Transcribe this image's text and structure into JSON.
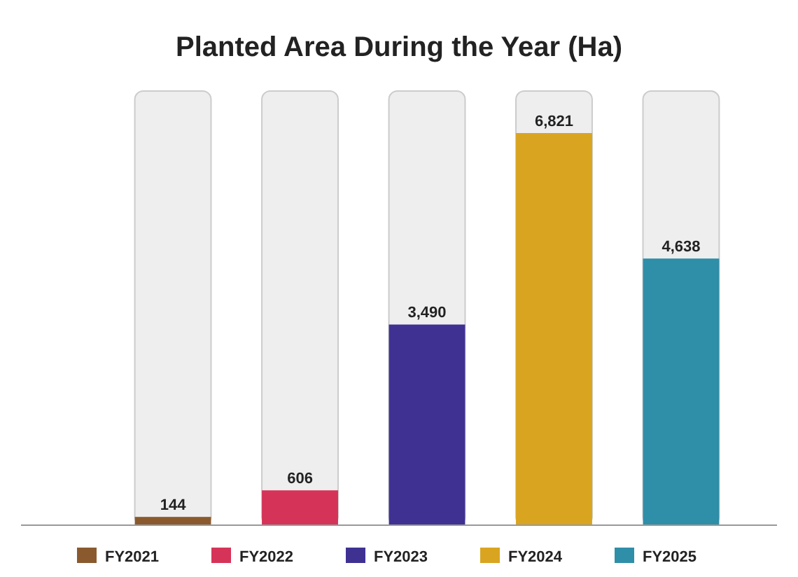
{
  "chart_data": {
    "type": "bar",
    "title": "Planted Area During the Year (Ha)",
    "categories": [
      null,
      null,
      null,
      null,
      null
    ],
    "stacked": true,
    "series": [
      {
        "name": "FY2021",
        "color": "#8a5a2e",
        "values": [
          144,
          null,
          null,
          null,
          null
        ],
        "value_labels": [
          "144",
          null,
          null,
          null,
          null
        ]
      },
      {
        "name": "FY2022",
        "color": "#d63358",
        "values": [
          null,
          606,
          null,
          null,
          null
        ],
        "value_labels": [
          null,
          "606",
          null,
          null,
          null
        ]
      },
      {
        "name": "FY2023",
        "color": "#3e3192",
        "values": [
          null,
          null,
          3490,
          null,
          null
        ],
        "value_labels": [
          null,
          null,
          "3,490",
          null,
          null
        ]
      },
      {
        "name": "FY2024",
        "color": "#d9a520",
        "values": [
          null,
          null,
          null,
          6821,
          null
        ],
        "value_labels": [
          null,
          null,
          null,
          "6,821",
          null
        ]
      },
      {
        "name": "FY2025",
        "color": "#2f8ea8",
        "values": [
          null,
          null,
          null,
          null,
          4638
        ],
        "value_labels": [
          null,
          null,
          null,
          null,
          "4,638"
        ]
      }
    ],
    "legend": "bottom"
  }
}
